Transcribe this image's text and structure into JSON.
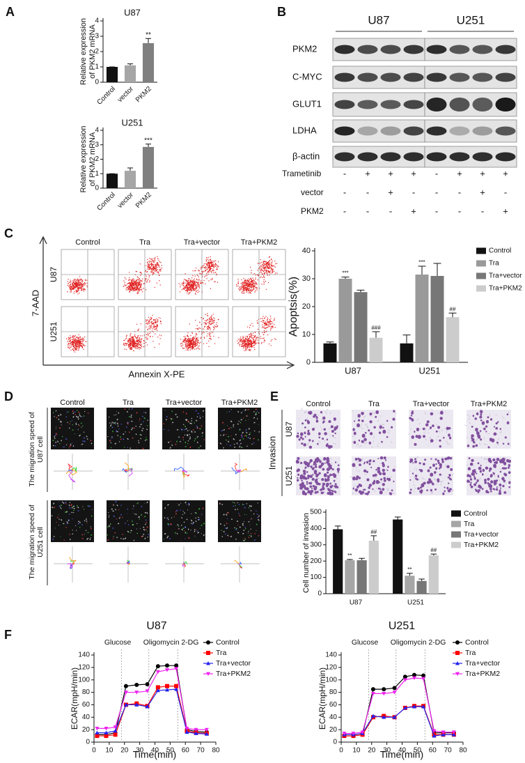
{
  "panels": {
    "labels": [
      "A",
      "B",
      "C",
      "D",
      "E",
      "F"
    ]
  },
  "blot": {
    "cell_lines": [
      "U87",
      "U251"
    ],
    "proteins": [
      "PKM2",
      "C-MYC",
      "GLUT1",
      "LDHA",
      "β-actin"
    ],
    "treatments": [
      {
        "name": "Trametinib",
        "signs": [
          "-",
          "+",
          "+",
          "+",
          "-",
          "+",
          "+",
          "+"
        ]
      },
      {
        "name": "vector",
        "signs": [
          "-",
          "-",
          "+",
          "-",
          "-",
          "-",
          "+",
          "-"
        ]
      },
      {
        "name": "PKM2",
        "signs": [
          "-",
          "-",
          "-",
          "+",
          "-",
          "-",
          "-",
          "+"
        ]
      }
    ]
  },
  "flow": {
    "columns": [
      "Control",
      "Tra",
      "Tra+vector",
      "Tra+PKM2"
    ],
    "rows": [
      "U87",
      "U251"
    ],
    "ylabel": "7-AAD",
    "xlabel": "Annexin X-PE"
  },
  "migration": {
    "columns": [
      "Control",
      "Tra",
      "Tra+vector",
      "Tra+PKM2"
    ],
    "rows": [
      [
        "The migration speed of",
        "U87 cell"
      ],
      [
        "The migration speed of",
        "U251 cell"
      ]
    ]
  },
  "invasion": {
    "columns": [
      "Control",
      "Tra",
      "Tra+vector",
      "Tra+PKM2"
    ],
    "rows": [
      "U87",
      "U251"
    ],
    "label": "Invasion"
  },
  "chart_data": [
    {
      "type": "bar",
      "title": "U87",
      "ylabel": [
        "Relative expression",
        "of PKM2 mRNA"
      ],
      "categories": [
        "Control",
        "vector",
        "PKM2"
      ],
      "values": [
        1,
        1.1,
        2.55
      ],
      "errors": [
        0,
        0.1,
        0.3
      ],
      "annotations": [
        null,
        null,
        "**"
      ],
      "colors": [
        "#111111",
        "#a6a6a6",
        "#7f7f7f"
      ],
      "ylim": [
        0,
        4
      ],
      "yticks": [
        0,
        1,
        2,
        3,
        4
      ]
    },
    {
      "type": "bar",
      "title": "U251",
      "ylabel": [
        "Relative expression",
        "of PKM2 mRNA"
      ],
      "categories": [
        "Control",
        "vector",
        "PKM2"
      ],
      "values": [
        1,
        1.2,
        2.85
      ],
      "errors": [
        0,
        0.2,
        0.2
      ],
      "annotations": [
        null,
        null,
        "***"
      ],
      "colors": [
        "#111111",
        "#a6a6a6",
        "#7f7f7f"
      ],
      "ylim": [
        0,
        4
      ],
      "yticks": [
        0,
        1,
        2,
        3,
        4
      ]
    },
    {
      "type": "bar",
      "ylabel": "Apoptsis(%)",
      "categories": [
        "U87",
        "U251"
      ],
      "series": [
        {
          "name": "Control",
          "color": "#111111",
          "values": [
            6.8,
            6.8
          ],
          "errors": [
            0.5,
            3
          ]
        },
        {
          "name": "Tra",
          "color": "#9a9a9a",
          "values": [
            30,
            31.5
          ],
          "errors": [
            0.6,
            3
          ],
          "annotations": [
            "***",
            "***"
          ]
        },
        {
          "name": "Tra+vector",
          "color": "#777777",
          "values": [
            25.2,
            31
          ],
          "errors": [
            0.7,
            4.5
          ]
        },
        {
          "name": "Tra+PKM2",
          "color": "#cccccc",
          "values": [
            8.8,
            16.2
          ],
          "errors": [
            2.2,
            1.5
          ],
          "annotations": [
            "###",
            "##"
          ]
        }
      ],
      "ylim": [
        0,
        40
      ],
      "yticks": [
        0,
        10,
        20,
        30,
        40
      ]
    },
    {
      "type": "bar",
      "ylabel": "Cell number of invasion",
      "categories": [
        "U87",
        "U251"
      ],
      "series": [
        {
          "name": "Control",
          "color": "#111111",
          "values": [
            395,
            455
          ],
          "errors": [
            20,
            15
          ]
        },
        {
          "name": "Tra",
          "color": "#a6a6a6",
          "values": [
            205,
            110
          ],
          "errors": [
            5,
            15
          ],
          "annotations": [
            "**",
            "**"
          ]
        },
        {
          "name": "Tra+vector",
          "color": "#777777",
          "values": [
            205,
            78
          ],
          "errors": [
            12,
            12
          ]
        },
        {
          "name": "Tra+PKM2",
          "color": "#cccccc",
          "values": [
            325,
            235
          ],
          "errors": [
            30,
            8
          ],
          "annotations": [
            "##",
            "##"
          ]
        }
      ],
      "ylim": [
        0,
        500
      ],
      "yticks": [
        0,
        100,
        200,
        300,
        400,
        500
      ]
    },
    {
      "type": "line",
      "title": "U87",
      "xlabel": "Time(min)",
      "ylabel": "ECAR(mpH/min)",
      "x": [
        2,
        8,
        14,
        21,
        28,
        35,
        42,
        48,
        54,
        61,
        67,
        74
      ],
      "events": [
        {
          "x": 18,
          "label": "Glucose"
        },
        {
          "x": 36,
          "label": "Oligomycin"
        },
        {
          "x": 55,
          "label": "2-DG"
        }
      ],
      "series": [
        {
          "name": "Control",
          "color": "#000000",
          "marker": "circle",
          "values": [
            12,
            12,
            15,
            90,
            92,
            93,
            122,
            123,
            123,
            20,
            17,
            16
          ]
        },
        {
          "name": "Tra",
          "color": "#ff0000",
          "marker": "square",
          "values": [
            10,
            10,
            12,
            60,
            62,
            58,
            88,
            90,
            90,
            18,
            15,
            14
          ]
        },
        {
          "name": "Tra+vector",
          "color": "#2222ee",
          "marker": "triangle",
          "values": [
            15,
            15,
            18,
            60,
            60,
            57,
            83,
            84,
            85,
            16,
            14,
            13
          ]
        },
        {
          "name": "Tra+PKM2",
          "color": "#ee22ee",
          "marker": "triangle-down",
          "values": [
            22,
            22,
            24,
            80,
            80,
            82,
            113,
            116,
            118,
            22,
            20,
            20
          ]
        }
      ],
      "xlim": [
        0,
        80
      ],
      "xticks": [
        0,
        10,
        20,
        30,
        40,
        50,
        60,
        70,
        80
      ],
      "ylim": [
        0,
        140
      ],
      "yticks": [
        0,
        20,
        40,
        60,
        80,
        100,
        120,
        140
      ]
    },
    {
      "type": "line",
      "title": "U251",
      "xlabel": "Time(min)",
      "ylabel": "ECAR(mpH/min)",
      "x": [
        2,
        8,
        14,
        21,
        28,
        35,
        42,
        48,
        54,
        61,
        67,
        74
      ],
      "events": [
        {
          "x": 18,
          "label": "Glucose"
        },
        {
          "x": 36,
          "label": "Oligomycin"
        },
        {
          "x": 55,
          "label": "2-DG"
        }
      ],
      "series": [
        {
          "name": "Control",
          "color": "#000000",
          "marker": "circle",
          "values": [
            10,
            10,
            12,
            85,
            85,
            87,
            105,
            108,
            107,
            15,
            15,
            15
          ]
        },
        {
          "name": "Tra",
          "color": "#ff0000",
          "marker": "square",
          "values": [
            10,
            10,
            12,
            40,
            42,
            40,
            55,
            58,
            58,
            12,
            12,
            12
          ]
        },
        {
          "name": "Tra+vector",
          "color": "#2222ee",
          "marker": "triangle",
          "values": [
            12,
            12,
            14,
            42,
            40,
            40,
            55,
            57,
            57,
            10,
            12,
            12
          ]
        },
        {
          "name": "Tra+PKM2",
          "color": "#ee22ee",
          "marker": "triangle-down",
          "values": [
            14,
            14,
            16,
            78,
            78,
            80,
            100,
            103,
            102,
            18,
            16,
            16
          ]
        }
      ],
      "xlim": [
        0,
        80
      ],
      "xticks": [
        0,
        10,
        20,
        30,
        40,
        50,
        60,
        70,
        80
      ],
      "ylim": [
        0,
        140
      ],
      "yticks": [
        0,
        20,
        40,
        60,
        80,
        100,
        120,
        140
      ]
    }
  ]
}
